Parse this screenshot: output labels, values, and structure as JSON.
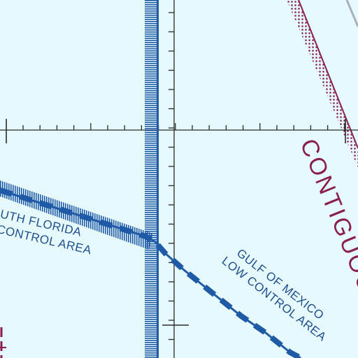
{
  "map": {
    "colors": {
      "background": "#e6fafd",
      "grid": "#2a2a2a",
      "airspace_blue": "#1f5aa6",
      "label_blue": "#1f4f8f",
      "boundary_maroon": "#8a1f4e"
    },
    "labels": {
      "south_florida_line1": "UTH FLORIDA",
      "south_florida_line2": "CONTROL AREA",
      "gulf_line1": "GULF OF MEXICO",
      "gulf_line2": "LOW CONTROL AREA",
      "contiguous": "CONTIGUOUS"
    }
  }
}
